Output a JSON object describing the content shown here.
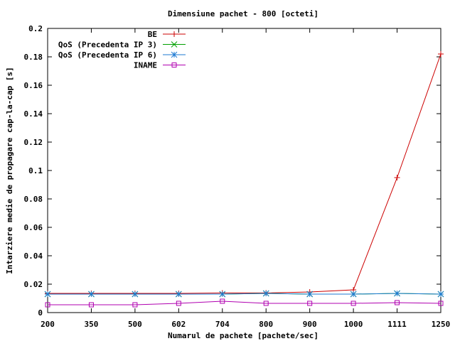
{
  "chart_data": {
    "type": "line",
    "title": "Dimensiune pachet - 800 [octeti]",
    "xlabel": "Numarul de pachete [pachete/sec]",
    "ylabel": "Intarziere medie de propagare cap-la-cap [s]",
    "categories": [
      "200",
      "350",
      "500",
      "602",
      "704",
      "800",
      "900",
      "1000",
      "1111",
      "1250"
    ],
    "ylim": [
      0,
      0.2
    ],
    "yticks": [
      "0",
      "0.02",
      "0.04",
      "0.06",
      "0.08",
      "0.1",
      "0.12",
      "0.14",
      "0.16",
      "0.18",
      "0.2"
    ],
    "grid": false,
    "legend_position": "top-left",
    "series": [
      {
        "name": "BE",
        "color": "#cc0000",
        "marker": "plus",
        "values": [
          0.0135,
          0.0135,
          0.0135,
          0.0135,
          0.0138,
          0.0138,
          0.0145,
          0.016,
          0.095,
          0.182
        ]
      },
      {
        "name": "QoS (Precedenta IP 3)",
        "color": "#00a000",
        "marker": "cross",
        "values": [
          0.013,
          0.013,
          0.013,
          0.013,
          0.013,
          0.0135,
          0.013,
          0.013,
          0.0135,
          0.013
        ]
      },
      {
        "name": "QoS (Precedenta IP 6)",
        "color": "#1e7ad2",
        "marker": "star",
        "values": [
          0.013,
          0.013,
          0.013,
          0.013,
          0.013,
          0.0135,
          0.013,
          0.013,
          0.0135,
          0.013
        ]
      },
      {
        "name": "INAME",
        "color": "#b000b0",
        "marker": "square",
        "values": [
          0.0055,
          0.0055,
          0.0055,
          0.0065,
          0.008,
          0.0065,
          0.0065,
          0.0065,
          0.007,
          0.0065
        ]
      }
    ]
  }
}
